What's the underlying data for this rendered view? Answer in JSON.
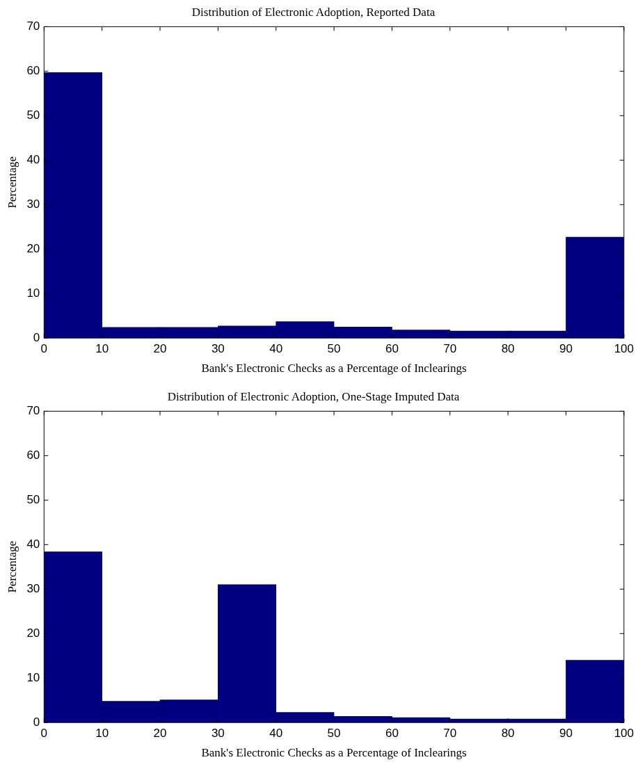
{
  "chart_data": [
    {
      "type": "histogram",
      "title": "Distribution of Electronic Adoption, Reported Data",
      "xlabel": "Bank's Electronic Checks as a Percentage of Inclearings",
      "ylabel": "Percentage",
      "color": "#000080",
      "bins": [
        0,
        10,
        20,
        30,
        40,
        50,
        60,
        70,
        80,
        90,
        100
      ],
      "values": [
        59.7,
        2.4,
        2.4,
        2.7,
        3.7,
        2.5,
        1.8,
        1.6,
        1.6,
        22.7
      ],
      "xlim": [
        0,
        100
      ],
      "xticks": [
        0,
        10,
        20,
        30,
        40,
        50,
        60,
        70,
        80,
        90,
        100
      ],
      "ylim": [
        0,
        70
      ],
      "yticks": [
        0,
        10,
        20,
        30,
        40,
        50,
        60,
        70
      ]
    },
    {
      "type": "histogram",
      "title": "Distribution of Electronic Adoption, One-Stage Imputed Data",
      "xlabel": "Bank's Electronic Checks as a Percentage of Inclearings",
      "ylabel": "Percentage",
      "color": "#000080",
      "bins": [
        0,
        10,
        20,
        30,
        40,
        50,
        60,
        70,
        80,
        90,
        100
      ],
      "values": [
        38.4,
        4.8,
        5.1,
        31,
        2.3,
        1.4,
        1.1,
        0.8,
        0.8,
        14
      ],
      "xlim": [
        0,
        100
      ],
      "xticks": [
        0,
        10,
        20,
        30,
        40,
        50,
        60,
        70,
        80,
        90,
        100
      ],
      "ylim": [
        0,
        70
      ],
      "yticks": [
        0,
        10,
        20,
        30,
        40,
        50,
        60,
        70
      ]
    }
  ]
}
